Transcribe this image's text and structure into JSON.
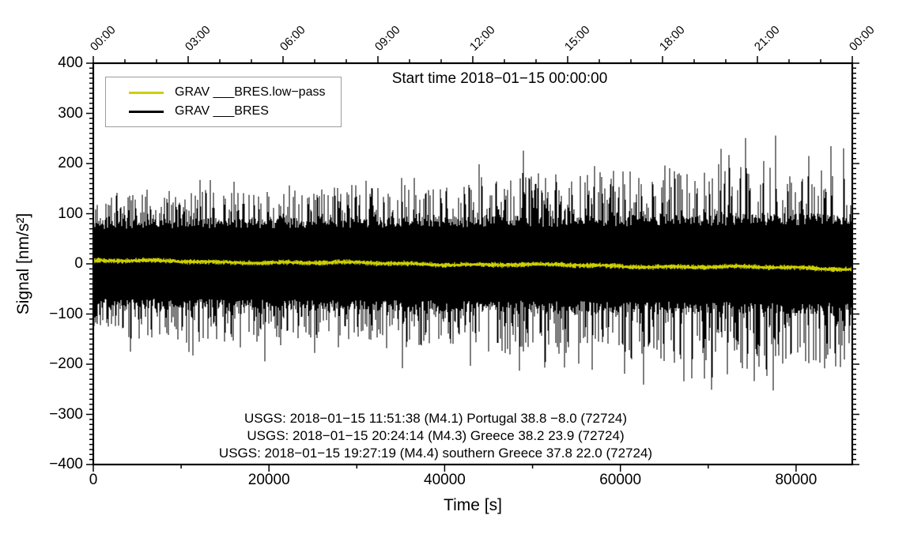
{
  "figure": {
    "title": "Start time 2018−01−15 00:00:00",
    "legend": {
      "position": "top-left",
      "items": [
        {
          "label": "GRAV ___BRES.low−pass",
          "color": "#cdd000"
        },
        {
          "label": "GRAV ___BRES",
          "color": "#000000"
        }
      ]
    },
    "annotations": [
      "USGS: 2018−01−15 11:51:38 (M4.1) Portugal 38.8 −8.0 (72724)",
      "USGS: 2018−01−15 20:24:14 (M4.3) Greece 38.2 23.9 (72724)",
      "USGS: 2018−01−15 19:27:19 (M4.4) southern Greece 37.8 22.0 (72724)"
    ]
  },
  "chart_data": {
    "type": "line",
    "title": "Start time 2018-01-15 00:00:00",
    "xlabel": "Time [s]",
    "ylabel": "Signal [nm/s²]",
    "xlim": [
      0,
      86400
    ],
    "ylim": [
      -400,
      400
    ],
    "grid": false,
    "legend_position": "top-left",
    "frame_color": "#000000",
    "axes": {
      "bottom": {
        "major_ticks": [
          0,
          20000,
          40000,
          60000,
          80000
        ],
        "minor_step": 10000
      },
      "left": {
        "major_ticks": [
          -400,
          -300,
          -200,
          -100,
          0,
          100,
          200,
          300,
          400
        ],
        "minor_step": 10
      },
      "top": {
        "major_ticks": [
          0,
          10800,
          21600,
          32400,
          43200,
          54000,
          64800,
          75600,
          86400
        ],
        "labels": [
          "00:00",
          "03:00",
          "06:00",
          "09:00",
          "12:00",
          "15:00",
          "18:00",
          "21:00",
          "00:00"
        ],
        "minor_step": 3600,
        "label_rotation_deg": -45
      },
      "right": {
        "mirror_of": "left"
      }
    },
    "series": [
      {
        "name": "GRAV ___BRES",
        "color": "#000000",
        "style": "noise_band",
        "description": "broadband microseismic noise, zero-mean, envelope grows through the day",
        "core_amplitude_nm_s2": [
          78,
          88
        ],
        "frequent_peak_amplitude_nm_s2": [
          140,
          200
        ],
        "max_spike_amplitude_nm_s2": [
          175,
          270
        ],
        "spike_probability": 0.085
      },
      {
        "name": "GRAV ___BRES.low-pass",
        "color": "#cdd000",
        "style": "noisy_line",
        "description": "low-pass filtered trace, drifts slowly from +6 to about -9 nm/s2",
        "trend_start_nm_s2": 6,
        "trend_end_nm_s2": -9.5,
        "jitter_nm_s2": 5
      }
    ],
    "seed": 20180115
  }
}
